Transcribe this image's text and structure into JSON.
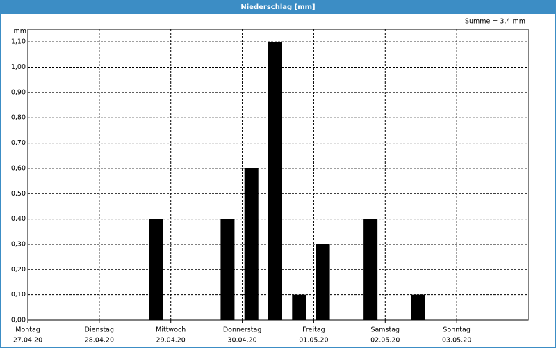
{
  "chart_data": {
    "type": "bar",
    "title": "Niederschlag [mm]",
    "y_unit": "mm",
    "sum_label": "Summe = 3,4 mm",
    "x_labels": [
      {
        "day": "Montag",
        "date": "27.04.20"
      },
      {
        "day": "Dienstag",
        "date": "28.04.20"
      },
      {
        "day": "Mittwoch",
        "date": "29.04.20"
      },
      {
        "day": "Donnerstag",
        "date": "30.04.20"
      },
      {
        "day": "Freitag",
        "date": "01.05.20"
      },
      {
        "day": "Samstag",
        "date": "02.05.20"
      },
      {
        "day": "Sonntag",
        "date": "03.05.20"
      }
    ],
    "values": [
      0,
      0,
      0,
      0,
      0,
      0.4,
      0,
      0,
      0.4,
      0.6,
      1.1,
      0.1,
      0.3,
      0,
      0.4,
      0,
      0.1,
      0,
      0,
      0,
      0
    ],
    "color": "#000000",
    "ylim": [
      0,
      1.15
    ],
    "yticks": [
      {
        "value": 0,
        "label": "0,00"
      },
      {
        "value": 0.1,
        "label": "0,10"
      },
      {
        "value": 0.2,
        "label": "0,20"
      },
      {
        "value": 0.3,
        "label": "0,30"
      },
      {
        "value": 0.4,
        "label": "0,40"
      },
      {
        "value": 0.5,
        "label": "0,50"
      },
      {
        "value": 0.6,
        "label": "0,60"
      },
      {
        "value": 0.7,
        "label": "0,70"
      },
      {
        "value": 0.8,
        "label": "0,80"
      },
      {
        "value": 0.9,
        "label": "0,90"
      },
      {
        "value": 1.0,
        "label": "1,00"
      },
      {
        "value": 1.1,
        "label": "1,10"
      }
    ],
    "grid": true
  }
}
